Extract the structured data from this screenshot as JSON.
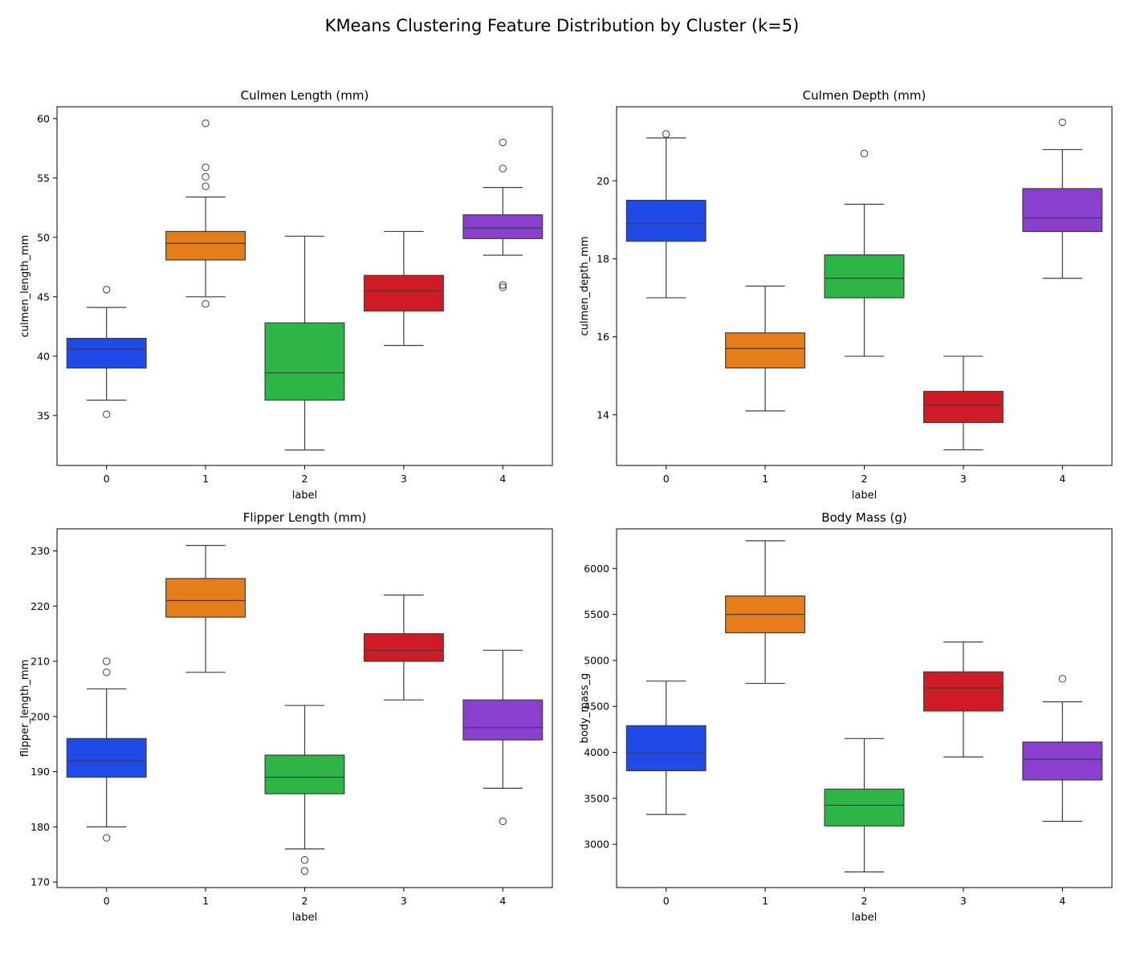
{
  "figure_title": "KMeans Clustering Feature Distribution by Cluster (k=5)",
  "colors": {
    "cluster_0": "#1f4ae8",
    "cluster_1": "#e57d1a",
    "cluster_2": "#2db546",
    "cluster_3": "#d01b24",
    "cluster_4": "#8a3fcf",
    "line": "#3d3d3d"
  },
  "chart_data": [
    {
      "type": "box",
      "title": "Culmen Length (mm)",
      "xlabel": "label",
      "ylabel": "culmen_length_mm",
      "categories": [
        "0",
        "1",
        "2",
        "3",
        "4"
      ],
      "ylim": [
        30.8,
        61.0
      ],
      "yticks": [
        35,
        40,
        45,
        50,
        55,
        60
      ],
      "boxes": [
        {
          "whislo": 36.3,
          "q1": 39.0,
          "med": 40.6,
          "q3": 41.5,
          "whishi": 44.1,
          "fliers": [
            45.6,
            35.1
          ]
        },
        {
          "whislo": 45.0,
          "q1": 48.1,
          "med": 49.5,
          "q3": 50.5,
          "whishi": 53.4,
          "fliers": [
            59.6,
            55.9,
            55.1,
            54.3,
            44.4
          ]
        },
        {
          "whislo": 32.1,
          "q1": 36.3,
          "med": 38.6,
          "q3": 42.8,
          "whishi": 50.1,
          "fliers": []
        },
        {
          "whislo": 40.9,
          "q1": 43.8,
          "med": 45.5,
          "q3": 46.8,
          "whishi": 50.5,
          "fliers": []
        },
        {
          "whislo": 48.5,
          "q1": 49.9,
          "med": 50.8,
          "q3": 51.9,
          "whishi": 54.2,
          "fliers": [
            58.0,
            55.8,
            46.0,
            45.8
          ]
        }
      ]
    },
    {
      "type": "box",
      "title": "Culmen Depth (mm)",
      "xlabel": "label",
      "ylabel": "culmen_depth_mm",
      "categories": [
        "0",
        "1",
        "2",
        "3",
        "4"
      ],
      "ylim": [
        12.7,
        21.9
      ],
      "yticks": [
        14,
        16,
        18,
        20
      ],
      "boxes": [
        {
          "whislo": 17.0,
          "q1": 18.45,
          "med": 18.9,
          "q3": 19.5,
          "whishi": 21.1,
          "fliers": [
            21.2
          ]
        },
        {
          "whislo": 14.1,
          "q1": 15.2,
          "med": 15.7,
          "q3": 16.1,
          "whishi": 17.3,
          "fliers": []
        },
        {
          "whislo": 15.5,
          "q1": 17.0,
          "med": 17.5,
          "q3": 18.1,
          "whishi": 19.4,
          "fliers": [
            20.7
          ]
        },
        {
          "whislo": 13.1,
          "q1": 13.8,
          "med": 14.25,
          "q3": 14.6,
          "whishi": 15.5,
          "fliers": []
        },
        {
          "whislo": 17.5,
          "q1": 18.7,
          "med": 19.05,
          "q3": 19.8,
          "whishi": 20.8,
          "fliers": [
            21.5
          ]
        }
      ]
    },
    {
      "type": "box",
      "title": "Flipper Length (mm)",
      "xlabel": "label",
      "ylabel": "flipper_length_mm",
      "categories": [
        "0",
        "1",
        "2",
        "3",
        "4"
      ],
      "ylim": [
        169.0,
        234.0
      ],
      "yticks": [
        170,
        180,
        190,
        200,
        210,
        220,
        230
      ],
      "boxes": [
        {
          "whislo": 180,
          "q1": 189,
          "med": 192,
          "q3": 196,
          "whishi": 205,
          "fliers": [
            210,
            208,
            178
          ]
        },
        {
          "whislo": 208,
          "q1": 218,
          "med": 221,
          "q3": 225,
          "whishi": 231,
          "fliers": []
        },
        {
          "whislo": 176,
          "q1": 186,
          "med": 189,
          "q3": 193,
          "whishi": 202,
          "fliers": [
            174,
            172
          ]
        },
        {
          "whislo": 203,
          "q1": 210,
          "med": 212,
          "q3": 215,
          "whishi": 222,
          "fliers": []
        },
        {
          "whislo": 187,
          "q1": 195.75,
          "med": 198,
          "q3": 203,
          "whishi": 212,
          "fliers": [
            181
          ]
        }
      ]
    },
    {
      "type": "box",
      "title": "Body Mass (g)",
      "xlabel": "label",
      "ylabel": "body_mass_g",
      "categories": [
        "0",
        "1",
        "2",
        "3",
        "4"
      ],
      "ylim": [
        2530,
        6430
      ],
      "yticks": [
        3000,
        3500,
        4000,
        4500,
        5000,
        5500,
        6000
      ],
      "boxes": [
        {
          "whislo": 3325,
          "q1": 3800,
          "med": 3990,
          "q3": 4290,
          "whishi": 4775,
          "fliers": []
        },
        {
          "whislo": 4750,
          "q1": 5300,
          "med": 5500,
          "q3": 5700,
          "whishi": 6300,
          "fliers": []
        },
        {
          "whislo": 2700,
          "q1": 3200,
          "med": 3425,
          "q3": 3600,
          "whishi": 4150,
          "fliers": []
        },
        {
          "whislo": 3950,
          "q1": 4450,
          "med": 4700,
          "q3": 4875,
          "whishi": 5200,
          "fliers": []
        },
        {
          "whislo": 3250,
          "q1": 3700,
          "med": 3925,
          "q3": 4112,
          "whishi": 4550,
          "fliers": [
            4800
          ]
        }
      ]
    }
  ]
}
